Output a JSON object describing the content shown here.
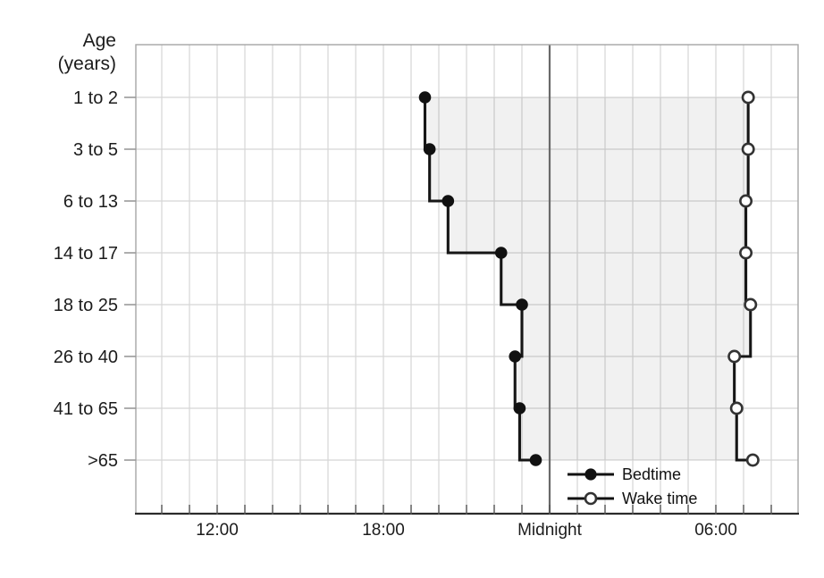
{
  "chart_data": {
    "type": "line",
    "line_style": "step",
    "title": "",
    "ylabel": "Age (years)",
    "ylabel_lines": [
      "Age",
      "(years)"
    ],
    "categories": [
      "1 to 2",
      "3 to 5",
      "6 to 13",
      "14 to 17",
      "18 to 25",
      "26 to 40",
      "41 to 65",
      ">65"
    ],
    "x_axis": {
      "unit": "clock time",
      "start_hour": 9,
      "end_hour": 33,
      "gridline_interval_hours": 1
    },
    "x_ticks": [
      {
        "label": "12:00",
        "hour": 12
      },
      {
        "label": "18:00",
        "hour": 18
      },
      {
        "label": "Midnight",
        "hour": 24
      },
      {
        "label": "06:00",
        "hour": 30
      }
    ],
    "midnight_rule_hour": 24,
    "series": [
      {
        "name": "Bedtime",
        "marker": "filled-circle",
        "times": [
          "19:30",
          "19:40",
          "20:20",
          "22:15",
          "23:00",
          "22:45",
          "22:55",
          "23:30"
        ],
        "hours": [
          19.5,
          19.667,
          20.333,
          22.25,
          23.0,
          22.75,
          22.917,
          23.5
        ]
      },
      {
        "name": "Wake time",
        "marker": "open-circle",
        "times": [
          "07:10",
          "07:10",
          "07:05",
          "07:05",
          "07:15",
          "06:40",
          "06:45",
          "07:20"
        ],
        "hours": [
          31.167,
          31.167,
          31.083,
          31.083,
          31.25,
          30.667,
          30.75,
          31.333
        ]
      }
    ],
    "shaded_region": "between Bedtime and Wake time lines",
    "legend_position": "inside bottom-right",
    "grid": true,
    "colors": {
      "line": "#161616",
      "grid": "#d5d5d5",
      "frame": "#a5a5a5",
      "x_axis_line": "#2b2b2b",
      "midnight_line": "#6a6a6a",
      "shading": "rgba(0,0,0,0.055)",
      "text": "#1c1c1c",
      "background": "#ffffff"
    }
  }
}
